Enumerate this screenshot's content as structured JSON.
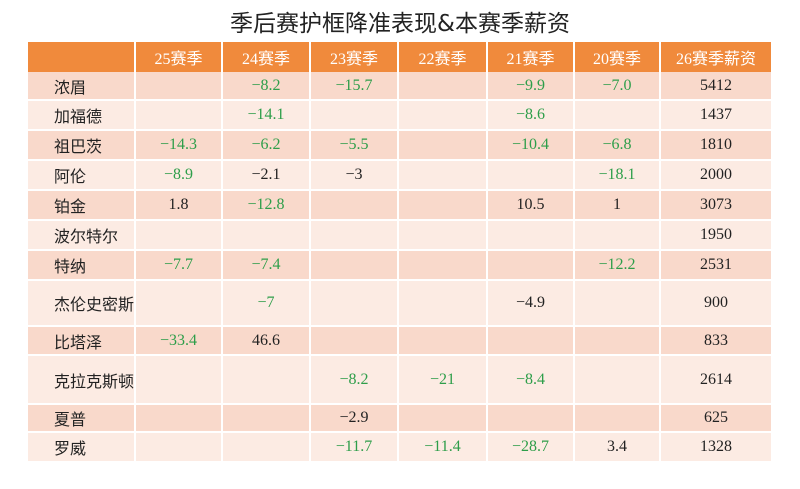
{
  "header": {
    "title": "季后赛护框降准表现&本赛季薪资"
  },
  "table": {
    "columns": [
      "25赛季",
      "24赛季",
      "23赛季",
      "22赛季",
      "21赛季",
      "20赛季",
      "26赛季薪资"
    ],
    "rows": [
      {
        "name": "浓眉",
        "cells": [
          null,
          {
            "value": "−8.2",
            "color": "#2e9e4a"
          },
          {
            "value": "−15.7",
            "color": "#2e9e4a"
          },
          null,
          {
            "value": "−9.9",
            "color": "#2e9e4a"
          },
          {
            "value": "−7.0",
            "color": "#2e9e4a"
          },
          "5412"
        ]
      },
      {
        "name": "加福德",
        "cells": [
          null,
          {
            "value": "−14.1",
            "color": "#2e9e4a"
          },
          null,
          null,
          {
            "value": "−8.6",
            "color": "#2e9e4a"
          },
          null,
          "1437"
        ]
      },
      {
        "name": "祖巴茨",
        "cells": [
          {
            "value": "−14.3",
            "color": "#2e9e4a"
          },
          {
            "value": "−6.2",
            "color": "#2e9e4a"
          },
          {
            "value": "−5.5",
            "color": "#2e9e4a"
          },
          null,
          {
            "value": "−10.4",
            "color": "#2e9e4a"
          },
          {
            "value": "−6.8",
            "color": "#2e9e4a"
          },
          "1810"
        ]
      },
      {
        "name": "阿伦",
        "cells": [
          {
            "value": "−8.9",
            "color": "#2e9e4a"
          },
          "−2.1",
          "−3",
          null,
          null,
          {
            "value": "−18.1",
            "color": "#2e9e4a"
          },
          "2000"
        ]
      },
      {
        "name": "铂金",
        "cells": [
          "1.8",
          {
            "value": "−12.8",
            "color": "#2e9e4a"
          },
          null,
          null,
          "10.5",
          "1",
          "3073"
        ]
      },
      {
        "name": "波尔特尔",
        "cells": [
          null,
          null,
          null,
          null,
          null,
          null,
          "1950"
        ]
      },
      {
        "name": "特纳",
        "cells": [
          {
            "value": "−7.7",
            "color": "#2e9e4a"
          },
          {
            "value": "−7.4",
            "color": "#2e9e4a"
          },
          null,
          null,
          null,
          {
            "value": "−12.2",
            "color": "#2e9e4a"
          },
          "2531"
        ]
      },
      {
        "name": "杰伦史密斯",
        "cells": [
          null,
          {
            "value": "−7",
            "color": "#2e9e4a"
          },
          null,
          null,
          "−4.9",
          null,
          "900"
        ]
      },
      {
        "name": "比塔泽",
        "cells": [
          {
            "value": "−33.4",
            "color": "#2e9e4a"
          },
          "46.6",
          null,
          null,
          null,
          null,
          "833"
        ]
      },
      {
        "name": "克拉克斯顿",
        "cells": [
          null,
          null,
          {
            "value": "−8.2",
            "color": "#2e9e4a"
          },
          {
            "value": "−21",
            "color": "#2e9e4a"
          },
          {
            "value": "−8.4",
            "color": "#2e9e4a"
          },
          null,
          "2614"
        ]
      },
      {
        "name": "夏普",
        "cells": [
          null,
          null,
          "−2.9",
          null,
          null,
          null,
          "625"
        ]
      },
      {
        "name": "罗威",
        "cells": [
          null,
          null,
          {
            "value": "−11.7",
            "color": "#2e9e4a"
          },
          {
            "value": "−11.4",
            "color": "#2e9e4a"
          },
          {
            "value": "−28.7",
            "color": "#2e9e4a"
          },
          "3.4",
          "1328"
        ]
      }
    ]
  }
}
